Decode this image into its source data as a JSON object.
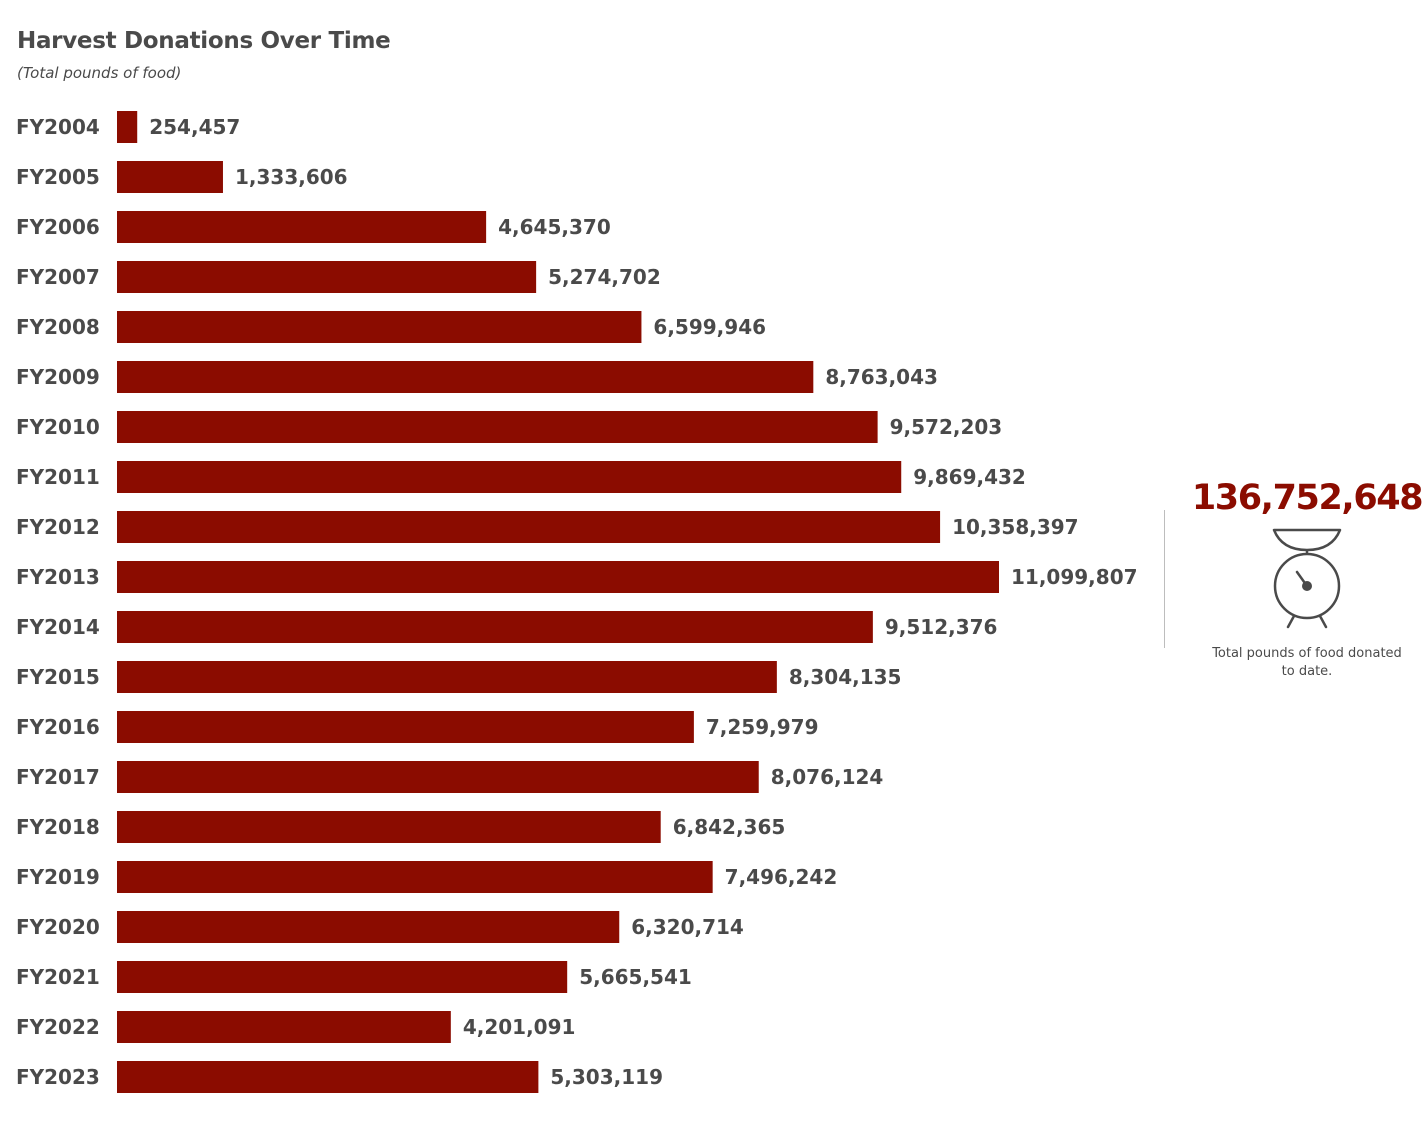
{
  "colors": {
    "bar": "#8b0c00",
    "text": "#4a4a4a",
    "accent": "#8b0c00"
  },
  "summary": {
    "total_value": "136,752,648",
    "caption": "Total pounds of food donated to date.",
    "icon": "scale-icon"
  },
  "chart_data": {
    "type": "bar",
    "orientation": "horizontal",
    "title": "Harvest Donations Over Time",
    "subtitle": "(Total pounds of food)",
    "categories": [
      "FY2004",
      "FY2005",
      "FY2006",
      "FY2007",
      "FY2008",
      "FY2009",
      "FY2010",
      "FY2011",
      "FY2012",
      "FY2013",
      "FY2014",
      "FY2015",
      "FY2016",
      "FY2017",
      "FY2018",
      "FY2019",
      "FY2020",
      "FY2021",
      "FY2022",
      "FY2023"
    ],
    "values": [
      254457,
      1333606,
      4645370,
      5274702,
      6599946,
      8763043,
      9572203,
      9869432,
      10358397,
      11099807,
      9512376,
      8304135,
      7259979,
      8076124,
      6842365,
      7496242,
      6320714,
      5665541,
      4201091,
      5303119
    ],
    "value_labels": [
      "254,457",
      "1,333,606",
      "4,645,370",
      "5,274,702",
      "6,599,946",
      "8,763,043",
      "9,572,203",
      "9,869,432",
      "10,358,397",
      "11,099,807",
      "9,512,376",
      "8,304,135",
      "7,259,979",
      "8,076,124",
      "6,842,365",
      "7,496,242",
      "6,320,714",
      "5,665,541",
      "4,201,091",
      "5,303,119"
    ],
    "xlim": [
      0,
      11099807
    ],
    "grid": false,
    "legend": "none"
  }
}
